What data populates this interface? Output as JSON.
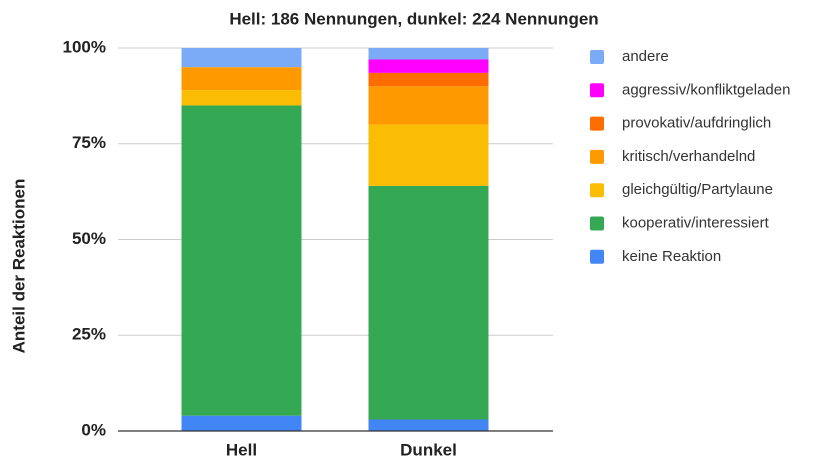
{
  "chart_data": {
    "type": "stacked_bar",
    "title": "Hell: 186 Nennungen, dunkel: 224 Nennungen",
    "ylabel": "Anteil der Reaktionen",
    "categories": [
      "Hell",
      "Dunkel"
    ],
    "series": [
      {
        "name": "keine Reaktion",
        "color": "#4285f4",
        "values": [
          4,
          3
        ]
      },
      {
        "name": "kooperativ/interessiert",
        "color": "#34a853",
        "values": [
          81,
          61
        ]
      },
      {
        "name": "gleichgültig/Partylaune",
        "color": "#fbbc04",
        "values": [
          4,
          16
        ]
      },
      {
        "name": "kritisch/verhandelnd",
        "color": "#ff9900",
        "values": [
          6,
          10
        ]
      },
      {
        "name": "provokativ/aufdringlich",
        "color": "#ff6d01",
        "values": [
          0,
          3.5
        ]
      },
      {
        "name": "aggressiv/konfliktgeladen",
        "color": "#ff00ff",
        "values": [
          0,
          3.5
        ]
      },
      {
        "name": "andere",
        "color": "#7baaf7",
        "values": [
          5,
          3
        ]
      }
    ],
    "ylim": [
      0,
      100
    ],
    "yticks": [
      {
        "value": 0,
        "label": "0%"
      },
      {
        "value": 25,
        "label": "25%"
      },
      {
        "value": 50,
        "label": "50%"
      },
      {
        "value": 75,
        "label": "75%"
      },
      {
        "value": 100,
        "label": "100%"
      }
    ],
    "grid": true,
    "legend": "right"
  }
}
